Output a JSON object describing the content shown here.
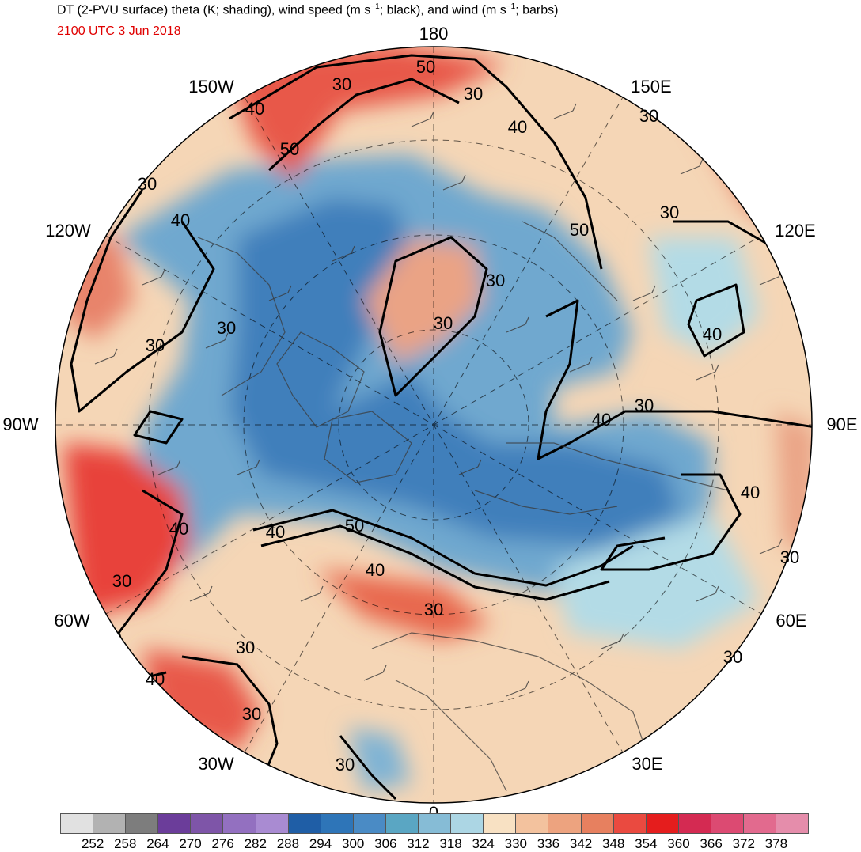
{
  "header": {
    "title_parts": [
      "DT (2-PVU surface) theta (K; shading), wind speed (m s",
      "−1",
      "; black), and wind (m s",
      "−1",
      "; barbs)"
    ],
    "valid_time": "2100 UTC 3 Jun 2018"
  },
  "map": {
    "projection": "north-polar-stereographic",
    "longitude_labels": [
      "180",
      "150E",
      "120E",
      "90E",
      "60E",
      "30E",
      "0",
      "30W",
      "60W",
      "90W",
      "120W",
      "150W"
    ],
    "contour_labels": [
      "50",
      "30",
      "40",
      "50",
      "30",
      "30",
      "40",
      "30",
      "40",
      "30",
      "50",
      "30",
      "30",
      "30",
      "40",
      "30",
      "40",
      "30",
      "40",
      "50",
      "40",
      "30",
      "40",
      "40",
      "30",
      "30",
      "40",
      "30",
      "30",
      "30",
      "30"
    ],
    "colors": {
      "cold": "#2c6fb5",
      "cool": "#8fc3dc",
      "neutral": "#f7dfc0",
      "warm": "#e8836a",
      "hot": "#e52a2a",
      "contour": "#000000",
      "barbs": "#3a3a3a",
      "valid_time": "#e00000"
    }
  },
  "colorbar": {
    "colors": [
      "#e1e1e1",
      "#b2b2b2",
      "#7d7d7d",
      "#6b3d9a",
      "#7e55a8",
      "#9370c0",
      "#a98bd2",
      "#1f5ea6",
      "#2e75b8",
      "#4a8bc5",
      "#5aa6c3",
      "#86bcd6",
      "#acd6e4",
      "#f8e1c3",
      "#f3c29e",
      "#eda37f",
      "#e7805f",
      "#ea4a40",
      "#e51d1d",
      "#d42a52",
      "#dc4a72",
      "#e26a8e",
      "#e58dab"
    ],
    "ticks": [
      "252",
      "258",
      "264",
      "270",
      "276",
      "282",
      "288",
      "294",
      "300",
      "306",
      "312",
      "318",
      "324",
      "330",
      "336",
      "342",
      "348",
      "354",
      "360",
      "366",
      "372",
      "378"
    ]
  }
}
